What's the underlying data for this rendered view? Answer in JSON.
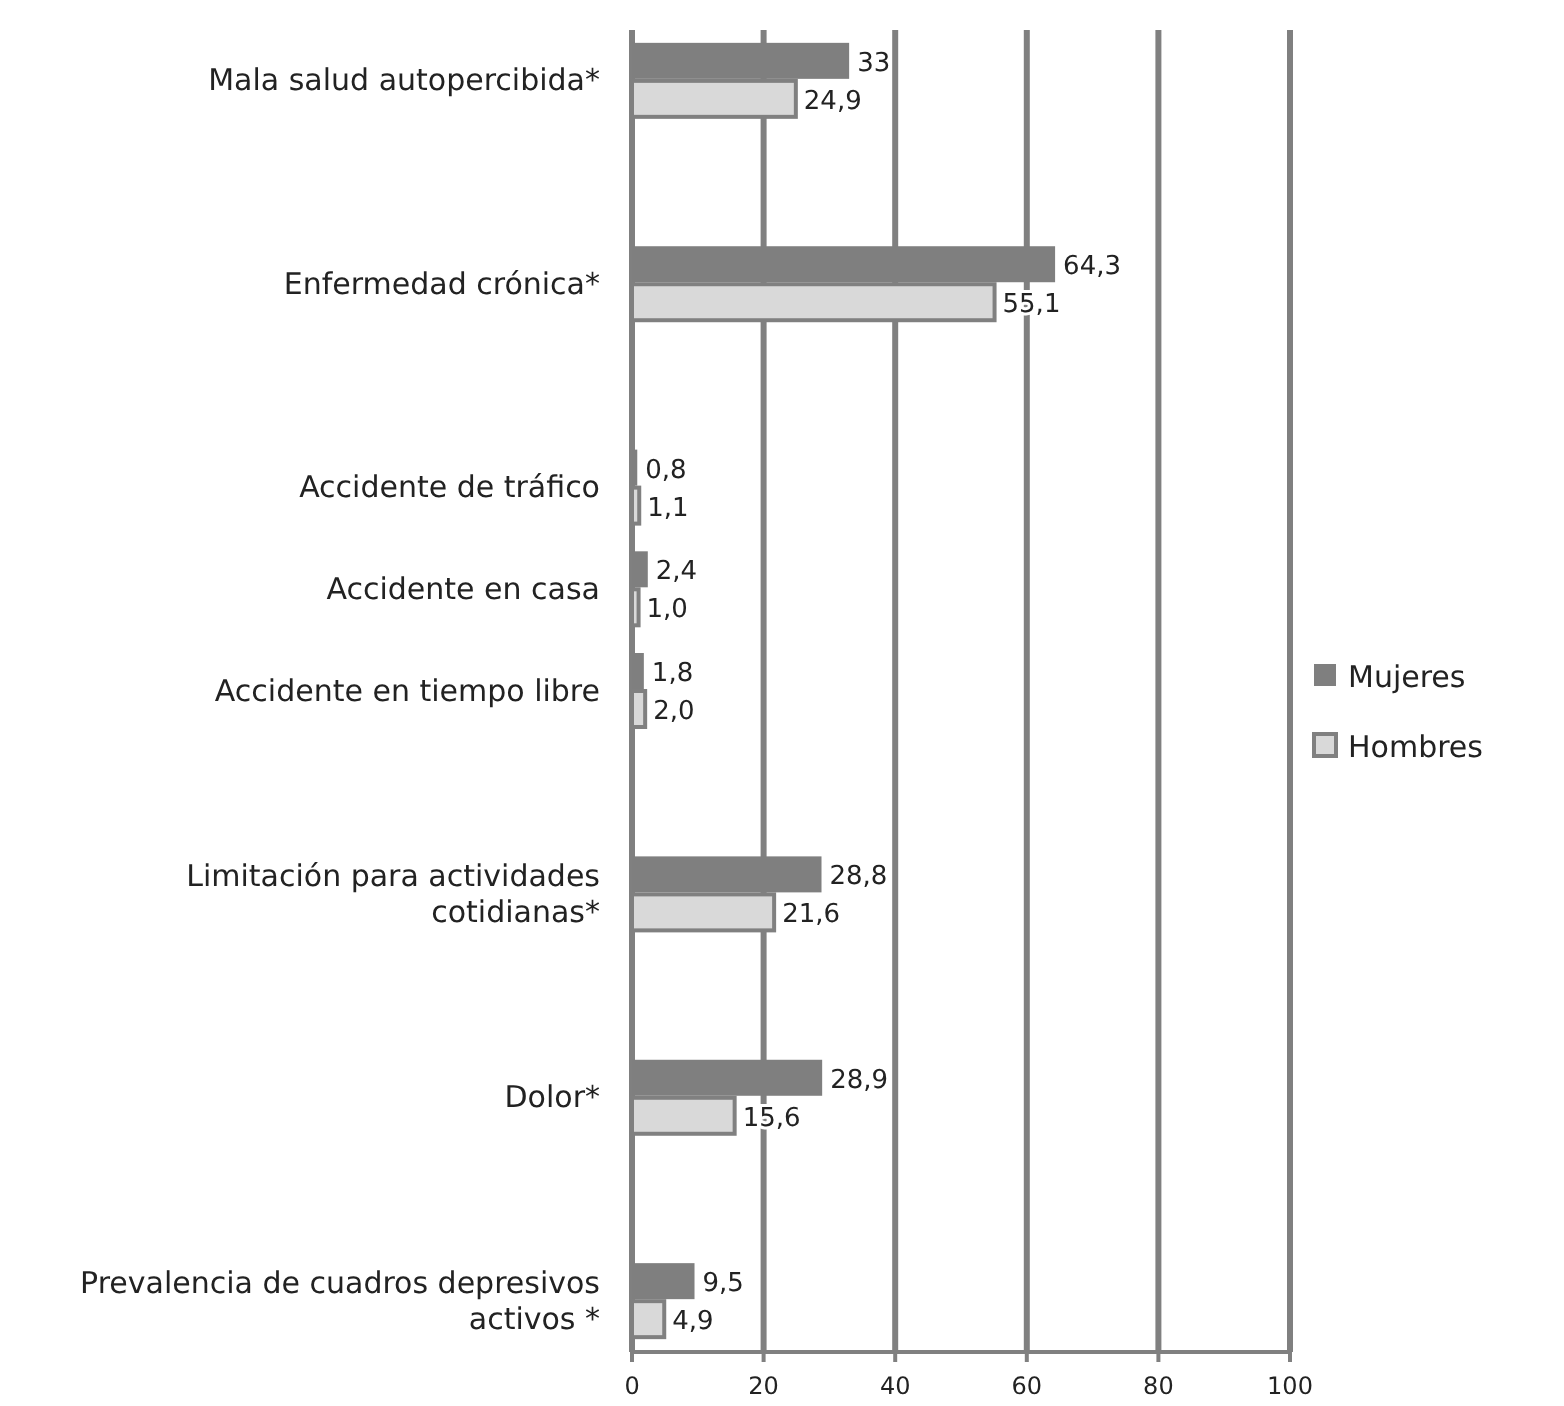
{
  "chart_data": {
    "type": "bar",
    "orientation": "horizontal",
    "categories": [
      "Mala salud autopercibida*",
      null,
      "Enfermedad crónica*",
      null,
      "Accidente de tráfico",
      "Accidente en casa",
      "Accidente en tiempo libre",
      null,
      "Limitación para actividades cotidianas*",
      null,
      "Dolor*",
      null,
      "Prevalencia de cuadros depresivos activos *"
    ],
    "series": [
      {
        "name": "Mujeres",
        "color": "#7f7f7f",
        "values": [
          33,
          null,
          64.3,
          null,
          0.8,
          2.4,
          1.8,
          null,
          28.8,
          null,
          28.9,
          null,
          9.5
        ],
        "value_labels": [
          "33",
          null,
          "64,3",
          null,
          "0,8",
          "2,4",
          "1,8",
          null,
          "28,8",
          null,
          "28,9",
          null,
          "9,5"
        ]
      },
      {
        "name": "Hombres",
        "color": "#d9d9d9",
        "values": [
          24.9,
          null,
          55.1,
          null,
          1.1,
          1.0,
          2.0,
          null,
          21.6,
          null,
          15.6,
          null,
          4.9
        ],
        "value_labels": [
          "24,9",
          null,
          "55,1",
          null,
          "1,1",
          "1,0",
          "2,0",
          null,
          "21,6",
          null,
          "15,6",
          null,
          "4,9"
        ]
      }
    ],
    "xlim": [
      0,
      100
    ],
    "xticks": [
      0,
      20,
      40,
      60,
      80,
      100
    ],
    "grid": "x",
    "legend": "right"
  }
}
